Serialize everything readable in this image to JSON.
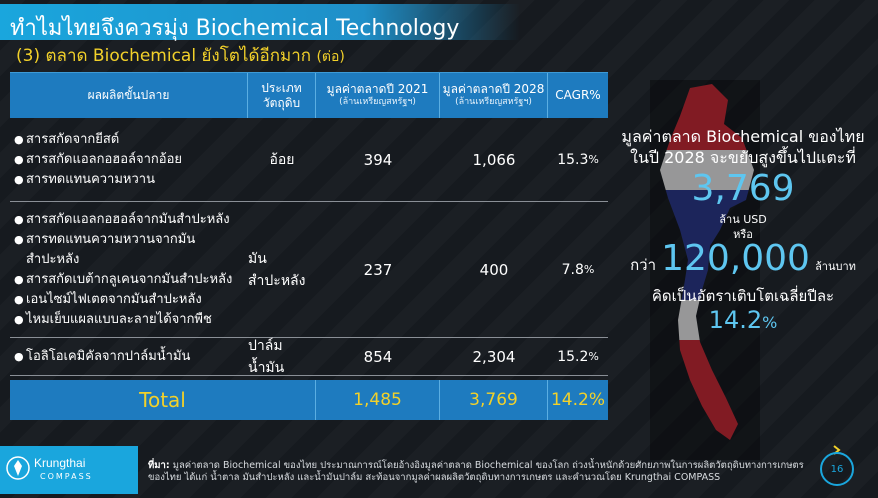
{
  "header": {
    "title": "ทำไมไทยจึงควรมุ่ง Biochemical Technology",
    "subtitle": "(3) ตลาด Biochemical ยังโตได้อีกมาก",
    "subtitle_note": "(ต่อ)"
  },
  "table": {
    "headers": {
      "product": "ผลผลิตขั้นปลาย",
      "material_line1": "ประเภท",
      "material_line2": "วัตถุดิบ",
      "value2021": "มูลค่าตลาดปี 2021",
      "value2021_unit": "(ล้านเหรียญสหรัฐฯ)",
      "value2028": "มูลค่าตลาดปี 2028",
      "value2028_unit": "(ล้านเหรียญสหรัฐฯ)",
      "cagr": "CAGR%"
    },
    "rows": [
      {
        "items": [
          "สารสกัดจากยีสต์",
          "สารสกัดแอลกอฮอล์จากอ้อย",
          "สารทดแทนความหวาน"
        ],
        "material": "อ้อย",
        "value2021": "394",
        "value2028": "1,066",
        "cagr": "15.3",
        "cagr_suffix": "%"
      },
      {
        "items": [
          "สารสกัดแอลกอฮอล์จากมันสำปะหลัง",
          "สารทดแทนความหวานจากมันสำปะหลัง",
          "สารสกัดเบต้ากลูเคนจากมันสำปะหลัง",
          "เอนไซม์ไฟเตตจากมันสำปะหลัง",
          "ไหมเย็บแผลแบบละลายได้จากพืช"
        ],
        "material": "มันสำปะหลัง",
        "value2021": "237",
        "value2028": "400",
        "cagr": "7.8",
        "cagr_suffix": "%"
      },
      {
        "items": [
          "โอลิโอเคมิคัลจากปาล์มน้ำมัน"
        ],
        "material": "ปาล์มน้ำมัน",
        "value2021": "854",
        "value2028": "2,304",
        "cagr": "15.2",
        "cagr_suffix": "%"
      }
    ],
    "total": {
      "label": "Total",
      "value2021": "1,485",
      "value2028": "3,769",
      "cagr": "14.2%"
    }
  },
  "panel": {
    "line1": "มูลค่าตลาด Biochemical ของไทย",
    "line2": "ในปี 2028 จะขยับสูงขึ้นไปแตะที่",
    "value_usd": "3,769",
    "unit_usd": "ล้าน USD",
    "or": "หรือ",
    "prefix_thb": "กว่า",
    "value_thb": "120,000",
    "unit_thb": "ล้านบาท",
    "line3": "คิดเป็นอัตราเติบโตเฉลี่ยปีละ",
    "growth": "14.2",
    "growth_suffix": "%"
  },
  "footer": {
    "logo_name": "Krungthai",
    "logo_sub": "COMPASS",
    "note_label": "ที่มา:",
    "note_line1": "มูลค่าตลาด Biochemical ของไทย ประมาณการณ์โดยอ้างอิงมูลค่าตลาด Biochemical ของโลก ถ่วงน้ำหนักด้วยศักยภาพในการผลิตวัตถุดิบทางการเกษตร",
    "note_line2": "ของไทย ได้แก่ น้ำตาล มันสำปะหลัง และน้ำมันปาล์ม สะท้อนจากมูลค่าผลผลิตวัตถุดิบทางการเกษตร และคำนวณโดย Krungthai COMPASS",
    "page_number": "16"
  },
  "colors": {
    "accent": "#1aa6dd",
    "header_fill": "#1e7bbf",
    "highlight": "#f2d12a",
    "value_blue": "#5ec6f0",
    "background": "#161a1f"
  }
}
